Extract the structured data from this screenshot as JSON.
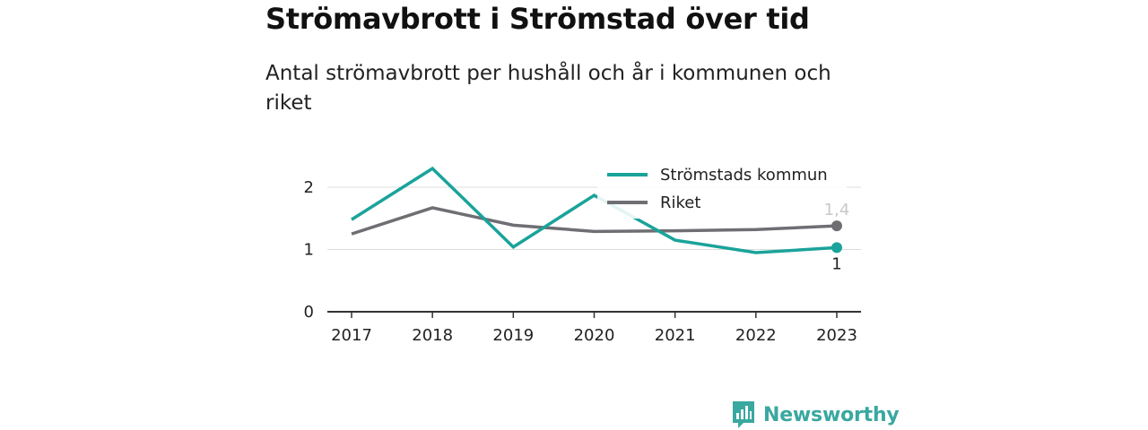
{
  "chart_data": {
    "type": "line",
    "title": "Strömavbrott i Strömstad över tid",
    "subtitle": "Antal strömavbrott per hushåll och år i kommunen och riket",
    "categories": [
      "2017",
      "2018",
      "2019",
      "2020",
      "2021",
      "2022",
      "2023"
    ],
    "series": [
      {
        "name": "Strömstads kommun",
        "values": [
          1.48,
          2.3,
          1.04,
          1.87,
          1.15,
          0.95,
          1.03
        ],
        "color": "#1aa39a",
        "end_label": "1"
      },
      {
        "name": "Riket",
        "values": [
          1.25,
          1.67,
          1.39,
          1.29,
          1.3,
          1.32,
          1.38
        ],
        "color": "#6e6e73",
        "end_label": "1,4"
      }
    ],
    "ylim": [
      0,
      2.2
    ],
    "yticks": [
      "0",
      "1",
      "2"
    ],
    "grid": true,
    "legend_position": "top-right",
    "xlabel": "",
    "ylabel": ""
  },
  "brand": {
    "name": "Newsworthy",
    "color": "#39a8a0",
    "icon": "newsworthy-logo-icon"
  }
}
